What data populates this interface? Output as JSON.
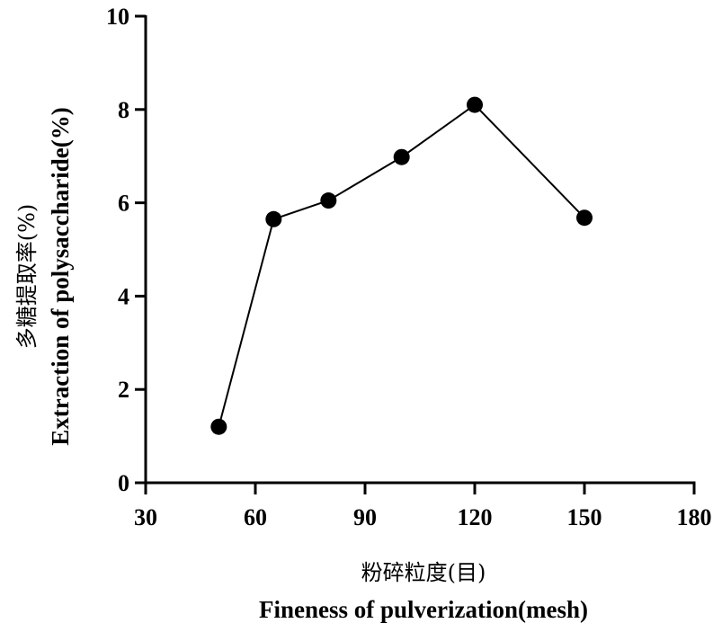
{
  "chart_data": {
    "type": "line",
    "title": "",
    "xlabel_cn": "粉碎粒度(目)",
    "xlabel": "Fineness of pulverization(mesh)",
    "ylabel_cn": "多糖提取率(%)",
    "ylabel": "Extraction of polysaccharide(%)",
    "xlim": [
      30,
      180
    ],
    "ylim": [
      0,
      10
    ],
    "xticks": [
      30,
      60,
      90,
      120,
      150,
      180
    ],
    "yticks": [
      0,
      2,
      4,
      6,
      8,
      10
    ],
    "grid": false,
    "series": [
      {
        "x": [
          50,
          65,
          80,
          100,
          120,
          150
        ],
        "y": [
          1.2,
          5.65,
          6.05,
          6.98,
          8.1,
          5.68
        ]
      }
    ],
    "colors": {
      "line": "#000000",
      "marker": "#000000",
      "axis": "#000000"
    }
  }
}
